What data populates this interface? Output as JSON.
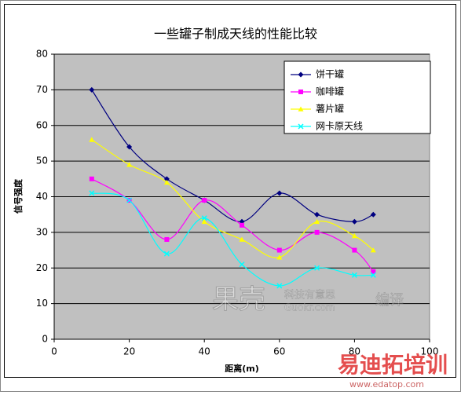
{
  "chart_data": {
    "type": "line",
    "title": "一些罐子制成天线的性能比较",
    "x_label": "距离(m)",
    "y_label": "信号强度",
    "x": [
      10,
      20,
      30,
      40,
      50,
      60,
      70,
      80,
      85
    ],
    "series": [
      {
        "name": "饼干罐",
        "color": "#000080",
        "marker": "diamond",
        "values": [
          70,
          54,
          45,
          39,
          33,
          41,
          35,
          33,
          35
        ]
      },
      {
        "name": "咖啡罐",
        "color": "#ff00ff",
        "marker": "square",
        "values": [
          45,
          39,
          28,
          39,
          32,
          25,
          30,
          25,
          19
        ]
      },
      {
        "name": "薯片罐",
        "color": "#ffff00",
        "marker": "triangle",
        "values": [
          56,
          49,
          44,
          33,
          28,
          23,
          33,
          29,
          25
        ]
      },
      {
        "name": "网卡原天线",
        "color": "#00ffff",
        "marker": "x",
        "values": [
          41,
          39,
          24,
          34,
          21,
          15,
          20,
          18,
          18
        ]
      }
    ],
    "xlim": [
      0,
      100
    ],
    "xticks": [
      0,
      20,
      40,
      60,
      80,
      100
    ],
    "ylim": [
      0,
      80
    ],
    "yticks": [
      0,
      10,
      20,
      30,
      40,
      50,
      60,
      70,
      80
    ],
    "grid": true,
    "smooth": true,
    "legend": "top-right"
  },
  "watermarks": {
    "guokr": "果壳",
    "guokr_slogan": "科技有意思",
    "guokr_url": "Guokr.com",
    "guokr_note": "编译",
    "edatop": "易迪拓培训",
    "edatop_url": "www.edatop.com"
  }
}
